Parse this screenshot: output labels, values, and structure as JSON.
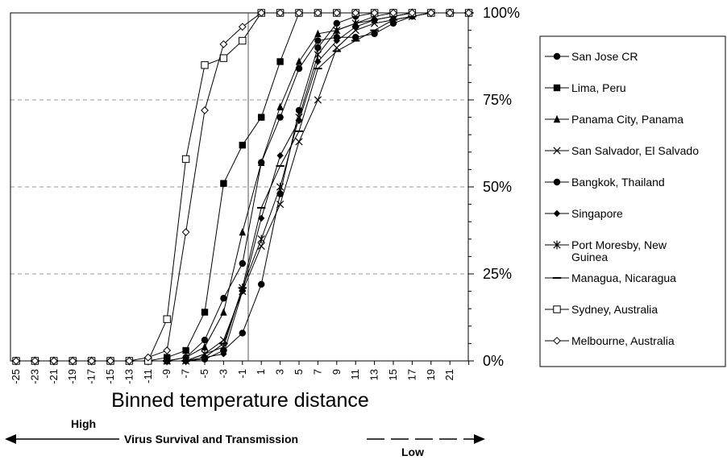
{
  "chart_data": {
    "type": "line",
    "x": [
      -25,
      -23,
      -21,
      -19,
      -17,
      -15,
      -13,
      -11,
      -9,
      -7,
      -5,
      -3,
      -1,
      1,
      3,
      5,
      7,
      9,
      11,
      13,
      15,
      17,
      19,
      21,
      23
    ],
    "x_tick_labels": [
      "-25",
      "-23",
      "-21",
      "-19",
      "-17",
      "-15",
      "-13",
      "-11",
      "-9",
      "-7",
      "-5",
      "-3",
      "-1",
      "1",
      "3",
      "5",
      "7",
      "9",
      "11",
      "13",
      "15",
      "17",
      "19",
      "21"
    ],
    "xlabel": "Binned temperature distance",
    "ylim": [
      0,
      100
    ],
    "y_ticks": [
      0,
      25,
      50,
      75,
      100
    ],
    "y_tick_labels": [
      "0%",
      "25%",
      "50%",
      "75%",
      "100%"
    ],
    "grid": "horizontal dashed",
    "legend_position": "right",
    "series": [
      {
        "name": "San Jose CR",
        "marker": "circle",
        "values": [
          0,
          0,
          0,
          0,
          0,
          0,
          0,
          0,
          0,
          0,
          0.5,
          3,
          8,
          22,
          48,
          72,
          90,
          97,
          99,
          100,
          100,
          100,
          100,
          100,
          100
        ]
      },
      {
        "name": "Lima, Peru",
        "marker": "square",
        "values": [
          0,
          0,
          0,
          0,
          0,
          0,
          0,
          0,
          1,
          3,
          14,
          51,
          62,
          70,
          86,
          100,
          100,
          100,
          100,
          100,
          100,
          100,
          100,
          100,
          100
        ]
      },
      {
        "name": "Panama City, Panama",
        "marker": "triangle",
        "values": [
          0,
          0,
          0,
          0,
          0,
          0,
          0,
          0,
          0,
          1,
          4,
          14,
          37,
          57,
          73,
          86,
          94,
          95,
          97,
          98,
          99,
          100,
          100,
          100,
          100
        ]
      },
      {
        "name": "San Salvador, El Salvado",
        "marker": "x",
        "values": [
          0,
          0,
          0,
          0,
          0,
          0,
          0,
          0,
          0,
          0,
          2,
          6,
          20,
          33,
          45,
          63,
          75,
          90,
          95,
          97,
          98,
          99,
          100,
          100,
          100
        ]
      },
      {
        "name": "Bangkok, Thailand",
        "marker": "circle",
        "values": [
          0,
          0,
          0,
          0,
          0,
          0,
          0,
          0,
          0,
          1,
          6,
          18,
          28,
          57,
          70,
          84,
          92,
          93,
          93,
          94,
          97,
          99,
          100,
          100,
          100
        ]
      },
      {
        "name": "Singapore",
        "marker": "diamond",
        "values": [
          0,
          0,
          0,
          0,
          0,
          0,
          0,
          0,
          0,
          0,
          1,
          2,
          20,
          41,
          59,
          69,
          86,
          92,
          96,
          98,
          99,
          100,
          100,
          100,
          100
        ]
      },
      {
        "name": "Port Moresby, New Guinea",
        "marker": "asterisk",
        "values": [
          0,
          0,
          0,
          0,
          0,
          0,
          0,
          0,
          0,
          0,
          2,
          4,
          21,
          35,
          50,
          70,
          88,
          95,
          97,
          99,
          100,
          100,
          100,
          100,
          100
        ]
      },
      {
        "name": "Managua, Nicaragua",
        "marker": "dash",
        "values": [
          0,
          0,
          0,
          0,
          0,
          0,
          0,
          0,
          0,
          0,
          1,
          5,
          21,
          44,
          56,
          66,
          84,
          89,
          92,
          95,
          98,
          99,
          100,
          100,
          100
        ]
      },
      {
        "name": "Sydney, Australia",
        "marker": "open-square",
        "values": [
          0,
          0,
          0,
          0,
          0,
          0,
          0,
          0,
          12,
          58,
          85,
          87,
          92,
          100,
          100,
          100,
          100,
          100,
          100,
          100,
          100,
          100,
          100,
          100,
          100
        ]
      },
      {
        "name": "Melbourne, Australia",
        "marker": "open-diamond",
        "values": [
          0,
          0,
          0,
          0,
          0,
          0,
          0,
          1,
          3,
          37,
          72,
          91,
          96,
          100,
          100,
          100,
          100,
          100,
          100,
          100,
          100,
          100,
          100,
          100,
          100
        ]
      }
    ]
  },
  "annotation": {
    "high": "High",
    "low": "Low",
    "arrow_text": "Virus Survival and Transmission"
  }
}
